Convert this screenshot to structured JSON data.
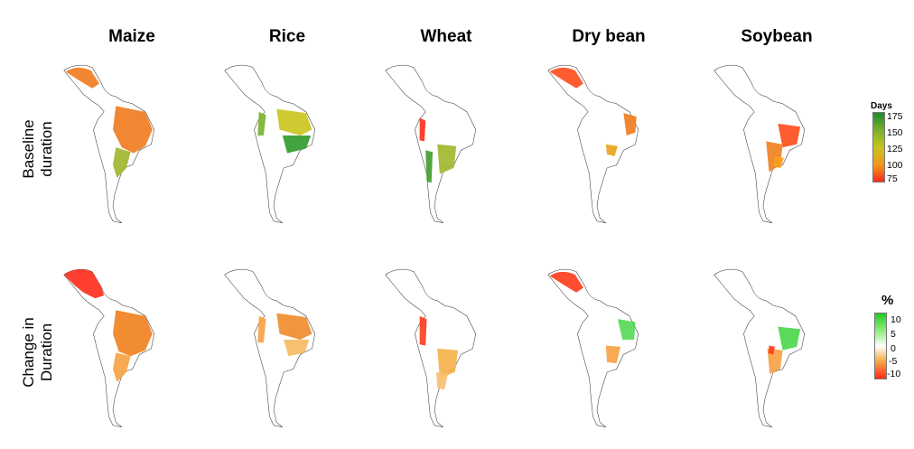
{
  "crops": [
    "Maize",
    "Rice",
    "Wheat",
    "Dry bean",
    "Soybean"
  ],
  "rows": [
    {
      "label_line1": "Baseline",
      "label_line2": "duration"
    },
    {
      "label_line1": "Change in",
      "label_line2": "Duration"
    }
  ],
  "legend_baseline": {
    "title": "Days",
    "ticks": [
      "175",
      "150",
      "125",
      "100",
      "75"
    ],
    "colors": [
      "#1e8a2e",
      "#7ab02c",
      "#c8c41c",
      "#f09a1c",
      "#ff2a1a"
    ]
  },
  "legend_change": {
    "title": "%",
    "ticks": [
      "10",
      "5",
      "0",
      "-5",
      "-10"
    ],
    "colors": [
      "#1ecb1e",
      "#9ef08a",
      "#ffffff",
      "#f6b04a",
      "#ff2a1a"
    ]
  },
  "map_fills": {
    "baseline": {
      "Maize": [
        "#f07a1c",
        "#e8a21a",
        "#9cb62a"
      ],
      "Rice": [
        "#c8c41c",
        "#7ab02c",
        "#2f9a2a"
      ],
      "Wheat": [
        "#ff2a1a",
        "#a0b62a",
        "#3f9a2a"
      ],
      "Dry bean": [
        "#ff4a1a",
        "#f07a1c",
        "#e8a21a"
      ],
      "Soybean": [
        "#ff4a1a",
        "#f0801c",
        "#f8a01c"
      ]
    },
    "change": {
      "Maize": [
        "#ff2a1a",
        "#f0801c",
        "#f6a040"
      ],
      "Rice": [
        "#f08a2a",
        "#f6a040",
        "#f6b860"
      ],
      "Wheat": [
        "#ff3a1a",
        "#f6b04a",
        "#f9c070"
      ],
      "Dry bean": [
        "#ff3a1a",
        "#f6a040",
        "#3ed43e"
      ],
      "Soybean": [
        "#3ed43e",
        "#f6a040",
        "#ff3a1a"
      ]
    }
  }
}
